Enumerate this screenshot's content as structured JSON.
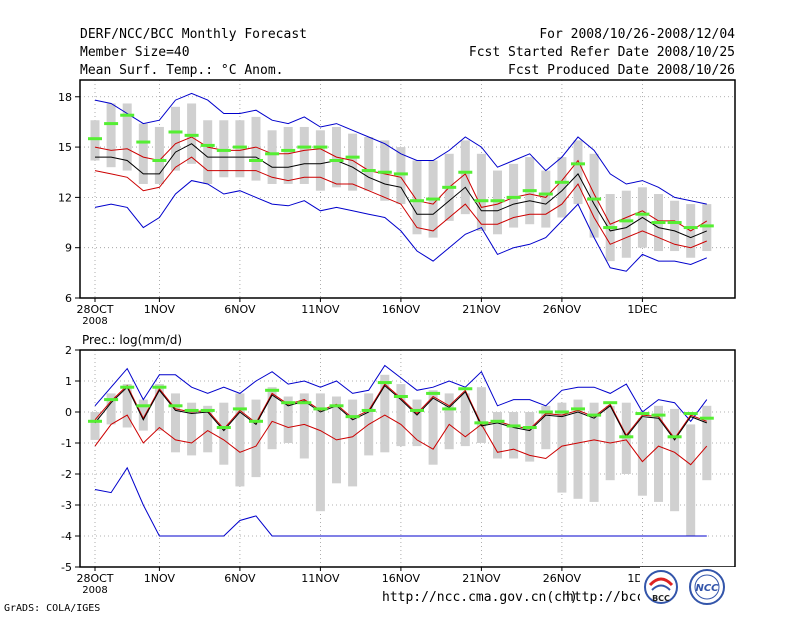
{
  "header": {
    "title": "DERF/NCC/BCC Monthly Forecast",
    "member_size": "Member Size=40",
    "variable": "Mean Surf. Temp.: °C Anom.",
    "period": "For 2008/10/26-2008/12/04",
    "started": "Fcst Started Refer Date 2008/10/25",
    "produced": "Fcst Produced Date 2008/10/26"
  },
  "footer": {
    "grads": "GrADS: COLA/IGES",
    "url1": "http://ncc.cma.gov.cn(ch)",
    "url2": "http://bcc.",
    "logo_bcc": "BCC",
    "logo_ncc": "NCC"
  },
  "colors": {
    "mean": "#000000",
    "spread_inner": "#cc0000",
    "spread_outer": "#0000cc",
    "box": "#d0d0d0",
    "median_bar": "#55ee33"
  },
  "chart_data": [
    {
      "type": "line",
      "title": "Mean Surf. Temp.: °C Anom.",
      "ylim": [
        6,
        19
      ],
      "yticks": [
        6,
        9,
        12,
        15,
        18
      ],
      "x_tick_labels": [
        {
          "i": 0,
          "label": "28OCT",
          "sub": "2008"
        },
        {
          "i": 4,
          "label": "1NOV"
        },
        {
          "i": 9,
          "label": "6NOV"
        },
        {
          "i": 14,
          "label": "11NOV"
        },
        {
          "i": 19,
          "label": "16NOV"
        },
        {
          "i": 24,
          "label": "21NOV"
        },
        {
          "i": 29,
          "label": "26NOV"
        },
        {
          "i": 34,
          "label": "1DEC"
        }
      ],
      "series": [
        {
          "name": "max",
          "role": "outer",
          "values": [
            11.4,
            11.6,
            11.4,
            10.2,
            10.8,
            12.2,
            13.0,
            12.8,
            12.2,
            12.4,
            12.0,
            11.6,
            11.5,
            11.8,
            11.2,
            11.4,
            11.2,
            11.0,
            10.8,
            10.0,
            8.8,
            8.2,
            9.0,
            9.8,
            10.2,
            8.6,
            9.0,
            9.2,
            9.6,
            10.6,
            11.6,
            9.6,
            7.8,
            7.6,
            8.6,
            8.2,
            8.2,
            8.0,
            8.4
          ]
        },
        {
          "name": "min",
          "role": "outer",
          "values": [
            17.8,
            17.6,
            17.0,
            16.4,
            16.6,
            17.8,
            18.2,
            17.8,
            17.0,
            17.0,
            17.2,
            16.6,
            16.4,
            16.8,
            16.2,
            16.4,
            16.0,
            15.6,
            15.2,
            14.6,
            14.2,
            14.2,
            14.8,
            15.6,
            15.0,
            13.8,
            14.2,
            14.6,
            13.6,
            14.4,
            15.6,
            14.8,
            13.4,
            12.8,
            13.0,
            12.6,
            12.0,
            11.8,
            11.6
          ]
        },
        {
          "name": "upper",
          "role": "inner",
          "values": [
            15.0,
            14.8,
            14.9,
            14.4,
            14.2,
            15.2,
            15.6,
            15.0,
            14.8,
            14.8,
            15.0,
            14.6,
            14.6,
            14.8,
            14.9,
            14.4,
            14.2,
            13.6,
            13.4,
            13.2,
            11.8,
            11.6,
            12.6,
            13.4,
            11.4,
            11.6,
            12.0,
            12.2,
            12.0,
            13.0,
            14.2,
            12.2,
            10.4,
            10.8,
            11.2,
            10.6,
            10.6,
            10.0,
            10.6
          ]
        },
        {
          "name": "mean",
          "role": "mean",
          "values": [
            14.4,
            14.4,
            14.2,
            13.4,
            13.4,
            14.7,
            15.2,
            14.4,
            14.4,
            14.4,
            14.4,
            13.8,
            13.8,
            14.0,
            14.0,
            14.2,
            13.8,
            13.2,
            12.8,
            12.6,
            11.0,
            11.0,
            11.8,
            12.6,
            11.2,
            11.2,
            11.6,
            11.8,
            11.6,
            12.4,
            13.4,
            11.6,
            10.0,
            10.2,
            10.8,
            10.2,
            10.0,
            9.6,
            10.0
          ]
        },
        {
          "name": "lower",
          "role": "inner",
          "values": [
            13.6,
            13.4,
            13.2,
            12.4,
            12.6,
            13.8,
            14.4,
            13.6,
            13.6,
            13.6,
            13.6,
            13.2,
            13.0,
            13.2,
            13.2,
            12.8,
            12.8,
            12.4,
            12.0,
            11.6,
            10.2,
            10.0,
            10.8,
            11.6,
            10.4,
            10.4,
            10.8,
            11.0,
            11.0,
            11.6,
            12.8,
            10.8,
            9.2,
            9.6,
            10.0,
            9.6,
            9.2,
            9.0,
            9.4
          ]
        }
      ],
      "boxes": [
        {
          "lo": 14.2,
          "hi": 16.6
        },
        {
          "lo": 13.8,
          "hi": 17.6
        },
        {
          "lo": 13.6,
          "hi": 17.6
        },
        {
          "lo": 12.8,
          "hi": 16.4
        },
        {
          "lo": 12.8,
          "hi": 16.2
        },
        {
          "lo": 13.6,
          "hi": 17.4
        },
        {
          "lo": 14.0,
          "hi": 17.6
        },
        {
          "lo": 12.8,
          "hi": 16.6
        },
        {
          "lo": 13.2,
          "hi": 16.6
        },
        {
          "lo": 13.2,
          "hi": 16.6
        },
        {
          "lo": 13.0,
          "hi": 16.8
        },
        {
          "lo": 12.8,
          "hi": 16.0
        },
        {
          "lo": 12.8,
          "hi": 16.2
        },
        {
          "lo": 12.8,
          "hi": 16.2
        },
        {
          "lo": 12.4,
          "hi": 16.0
        },
        {
          "lo": 12.6,
          "hi": 16.2
        },
        {
          "lo": 12.4,
          "hi": 15.8
        },
        {
          "lo": 12.4,
          "hi": 15.6
        },
        {
          "lo": 11.8,
          "hi": 15.4
        },
        {
          "lo": 11.6,
          "hi": 15.0
        },
        {
          "lo": 9.8,
          "hi": 14.2
        },
        {
          "lo": 9.6,
          "hi": 14.2
        },
        {
          "lo": 10.6,
          "hi": 14.6
        },
        {
          "lo": 11.0,
          "hi": 15.4
        },
        {
          "lo": 10.0,
          "hi": 14.6
        },
        {
          "lo": 9.8,
          "hi": 13.6
        },
        {
          "lo": 10.2,
          "hi": 14.0
        },
        {
          "lo": 10.4,
          "hi": 14.4
        },
        {
          "lo": 10.2,
          "hi": 13.6
        },
        {
          "lo": 10.8,
          "hi": 14.4
        },
        {
          "lo": 11.6,
          "hi": 15.4
        },
        {
          "lo": 9.6,
          "hi": 14.6
        },
        {
          "lo": 8.2,
          "hi": 12.2
        },
        {
          "lo": 8.4,
          "hi": 12.4
        },
        {
          "lo": 9.0,
          "hi": 12.6
        },
        {
          "lo": 8.8,
          "hi": 12.2
        },
        {
          "lo": 8.8,
          "hi": 11.8
        },
        {
          "lo": 8.4,
          "hi": 11.6
        },
        {
          "lo": 8.8,
          "hi": 11.6
        }
      ],
      "medians": [
        15.5,
        16.4,
        16.9,
        15.3,
        14.2,
        15.9,
        15.7,
        15.1,
        14.8,
        15.0,
        14.2,
        14.6,
        14.8,
        15.0,
        15.0,
        14.2,
        14.4,
        13.6,
        13.5,
        13.4,
        11.8,
        11.9,
        12.6,
        13.5,
        11.8,
        11.8,
        12.0,
        12.4,
        12.2,
        12.9,
        14.0,
        11.9,
        10.2,
        10.6,
        11.0,
        10.5,
        10.5,
        10.2,
        10.3
      ]
    },
    {
      "type": "line",
      "title": "Prec.: log(mm/d)",
      "ylim": [
        -5,
        2
      ],
      "yticks": [
        -5,
        -4,
        -3,
        -2,
        -1,
        0,
        1,
        2
      ],
      "x_tick_labels": [
        {
          "i": 0,
          "label": "28OCT",
          "sub": "2008"
        },
        {
          "i": 4,
          "label": "1NOV"
        },
        {
          "i": 9,
          "label": "6NOV"
        },
        {
          "i": 14,
          "label": "11NOV"
        },
        {
          "i": 19,
          "label": "16NOV"
        },
        {
          "i": 24,
          "label": "21NOV"
        },
        {
          "i": 29,
          "label": "26NOV"
        },
        {
          "i": 34,
          "label": "1DEC"
        }
      ],
      "series": [
        {
          "name": "min",
          "role": "outer",
          "values": [
            -2.5,
            -2.6,
            -1.8,
            -3.0,
            -4.0,
            -4.0,
            -4.0,
            -4.0,
            -4.0,
            -3.5,
            -3.35,
            -4.0,
            -4.0,
            -4.0,
            -4.0,
            -4.0,
            -4.0,
            -4.0,
            -4.0,
            -4.0,
            -4.0,
            -4.0,
            -4.0,
            -4.0,
            -4.0,
            -4.0,
            -4.0,
            -4.0,
            -4.0,
            -4.0,
            -4.0,
            -4.0,
            -4.0,
            -4.0,
            -4.0,
            -4.0,
            -4.0,
            -4.0,
            -4.0
          ]
        },
        {
          "name": "max",
          "role": "outer",
          "values": [
            0.2,
            0.8,
            1.4,
            0.4,
            1.2,
            1.2,
            0.8,
            0.6,
            0.8,
            0.6,
            1.0,
            1.3,
            0.9,
            1.0,
            0.8,
            1.0,
            0.6,
            0.7,
            1.5,
            1.1,
            0.7,
            0.8,
            1.0,
            0.8,
            1.3,
            0.2,
            0.4,
            0.4,
            0.2,
            0.7,
            0.8,
            0.8,
            0.6,
            0.9,
            0.0,
            0.4,
            0.3,
            -0.3,
            0.4
          ]
        },
        {
          "name": "lower",
          "role": "inner",
          "values": [
            -1.1,
            -0.4,
            -0.1,
            -1.0,
            -0.5,
            -0.9,
            -1.0,
            -0.6,
            -0.9,
            -1.3,
            -1.1,
            -0.3,
            -0.5,
            -0.4,
            -0.6,
            -0.9,
            -0.8,
            -0.4,
            -0.1,
            -0.4,
            -0.9,
            -1.2,
            -0.4,
            -0.8,
            -0.4,
            -1.3,
            -1.2,
            -1.4,
            -1.5,
            -1.1,
            -1.0,
            -0.9,
            -1.0,
            -0.9,
            -1.6,
            -1.1,
            -1.3,
            -1.7,
            -1.1
          ]
        },
        {
          "name": "upper",
          "role": "inner",
          "values": [
            -0.25,
            0.35,
            0.85,
            -0.2,
            0.75,
            0.1,
            0.0,
            0.05,
            -0.55,
            0.05,
            -0.35,
            0.6,
            0.25,
            0.4,
            0.05,
            0.25,
            -0.2,
            0.05,
            0.9,
            0.45,
            -0.05,
            0.5,
            0.2,
            0.7,
            -0.4,
            -0.3,
            -0.45,
            -0.55,
            -0.05,
            -0.1,
            0.05,
            -0.15,
            0.25,
            -0.75,
            -0.1,
            -0.15,
            -0.85,
            -0.1,
            -0.3
          ]
        },
        {
          "name": "mean",
          "role": "mean",
          "values": [
            -0.35,
            0.3,
            0.8,
            -0.25,
            0.7,
            0.05,
            -0.05,
            0.0,
            -0.6,
            0.0,
            -0.4,
            0.55,
            0.2,
            0.35,
            0.0,
            0.2,
            -0.25,
            0.0,
            0.85,
            0.4,
            -0.1,
            0.45,
            0.15,
            0.65,
            -0.45,
            -0.35,
            -0.5,
            -0.6,
            -0.1,
            -0.15,
            0.0,
            -0.2,
            0.2,
            -0.8,
            -0.15,
            -0.2,
            -0.9,
            -0.15,
            -0.35
          ]
        }
      ],
      "boxes": [
        {
          "lo": -0.9,
          "hi": 0.0
        },
        {
          "lo": -0.4,
          "hi": 0.6
        },
        {
          "lo": -0.5,
          "hi": 0.9
        },
        {
          "lo": -0.6,
          "hi": 0.4
        },
        {
          "lo": -0.6,
          "hi": 0.9
        },
        {
          "lo": -1.3,
          "hi": 0.6
        },
        {
          "lo": -1.4,
          "hi": 0.3
        },
        {
          "lo": -1.3,
          "hi": 0.2
        },
        {
          "lo": -1.7,
          "hi": 0.3
        },
        {
          "lo": -2.4,
          "hi": 0.6
        },
        {
          "lo": -2.1,
          "hi": 0.4
        },
        {
          "lo": -1.2,
          "hi": 0.8
        },
        {
          "lo": -1.0,
          "hi": 0.5
        },
        {
          "lo": -1.5,
          "hi": 0.6
        },
        {
          "lo": -3.2,
          "hi": 0.6
        },
        {
          "lo": -2.3,
          "hi": 0.5
        },
        {
          "lo": -2.4,
          "hi": 0.4
        },
        {
          "lo": -1.4,
          "hi": 0.6
        },
        {
          "lo": -1.3,
          "hi": 1.2
        },
        {
          "lo": -1.1,
          "hi": 0.9
        },
        {
          "lo": -1.1,
          "hi": 0.4
        },
        {
          "lo": -1.7,
          "hi": 0.7
        },
        {
          "lo": -1.2,
          "hi": 0.6
        },
        {
          "lo": -1.1,
          "hi": 0.6
        },
        {
          "lo": -1.0,
          "hi": 0.8
        },
        {
          "lo": -1.5,
          "hi": 0.0
        },
        {
          "lo": -1.5,
          "hi": 0.0
        },
        {
          "lo": -1.6,
          "hi": 0.0
        },
        {
          "lo": -1.2,
          "hi": 0.2
        },
        {
          "lo": -2.6,
          "hi": 0.3
        },
        {
          "lo": -2.8,
          "hi": 0.4
        },
        {
          "lo": -2.9,
          "hi": 0.3
        },
        {
          "lo": -2.2,
          "hi": 0.2
        },
        {
          "lo": -2.0,
          "hi": 0.3
        },
        {
          "lo": -2.7,
          "hi": -0.2
        },
        {
          "lo": -2.9,
          "hi": 0.2
        },
        {
          "lo": -3.2,
          "hi": 0.1
        },
        {
          "lo": -4.0,
          "hi": -0.4
        },
        {
          "lo": -2.2,
          "hi": 0.2
        }
      ],
      "medians": [
        -0.3,
        0.4,
        0.8,
        0.2,
        0.8,
        0.2,
        0.05,
        0.05,
        -0.5,
        0.1,
        -0.3,
        0.7,
        0.3,
        0.3,
        0.1,
        0.2,
        -0.15,
        0.05,
        0.95,
        0.5,
        0.05,
        0.6,
        0.1,
        0.75,
        -0.35,
        -0.3,
        -0.45,
        -0.5,
        0.0,
        0.0,
        0.1,
        -0.1,
        0.3,
        -0.8,
        -0.05,
        -0.1,
        -0.8,
        -0.05,
        -0.2
      ]
    }
  ]
}
